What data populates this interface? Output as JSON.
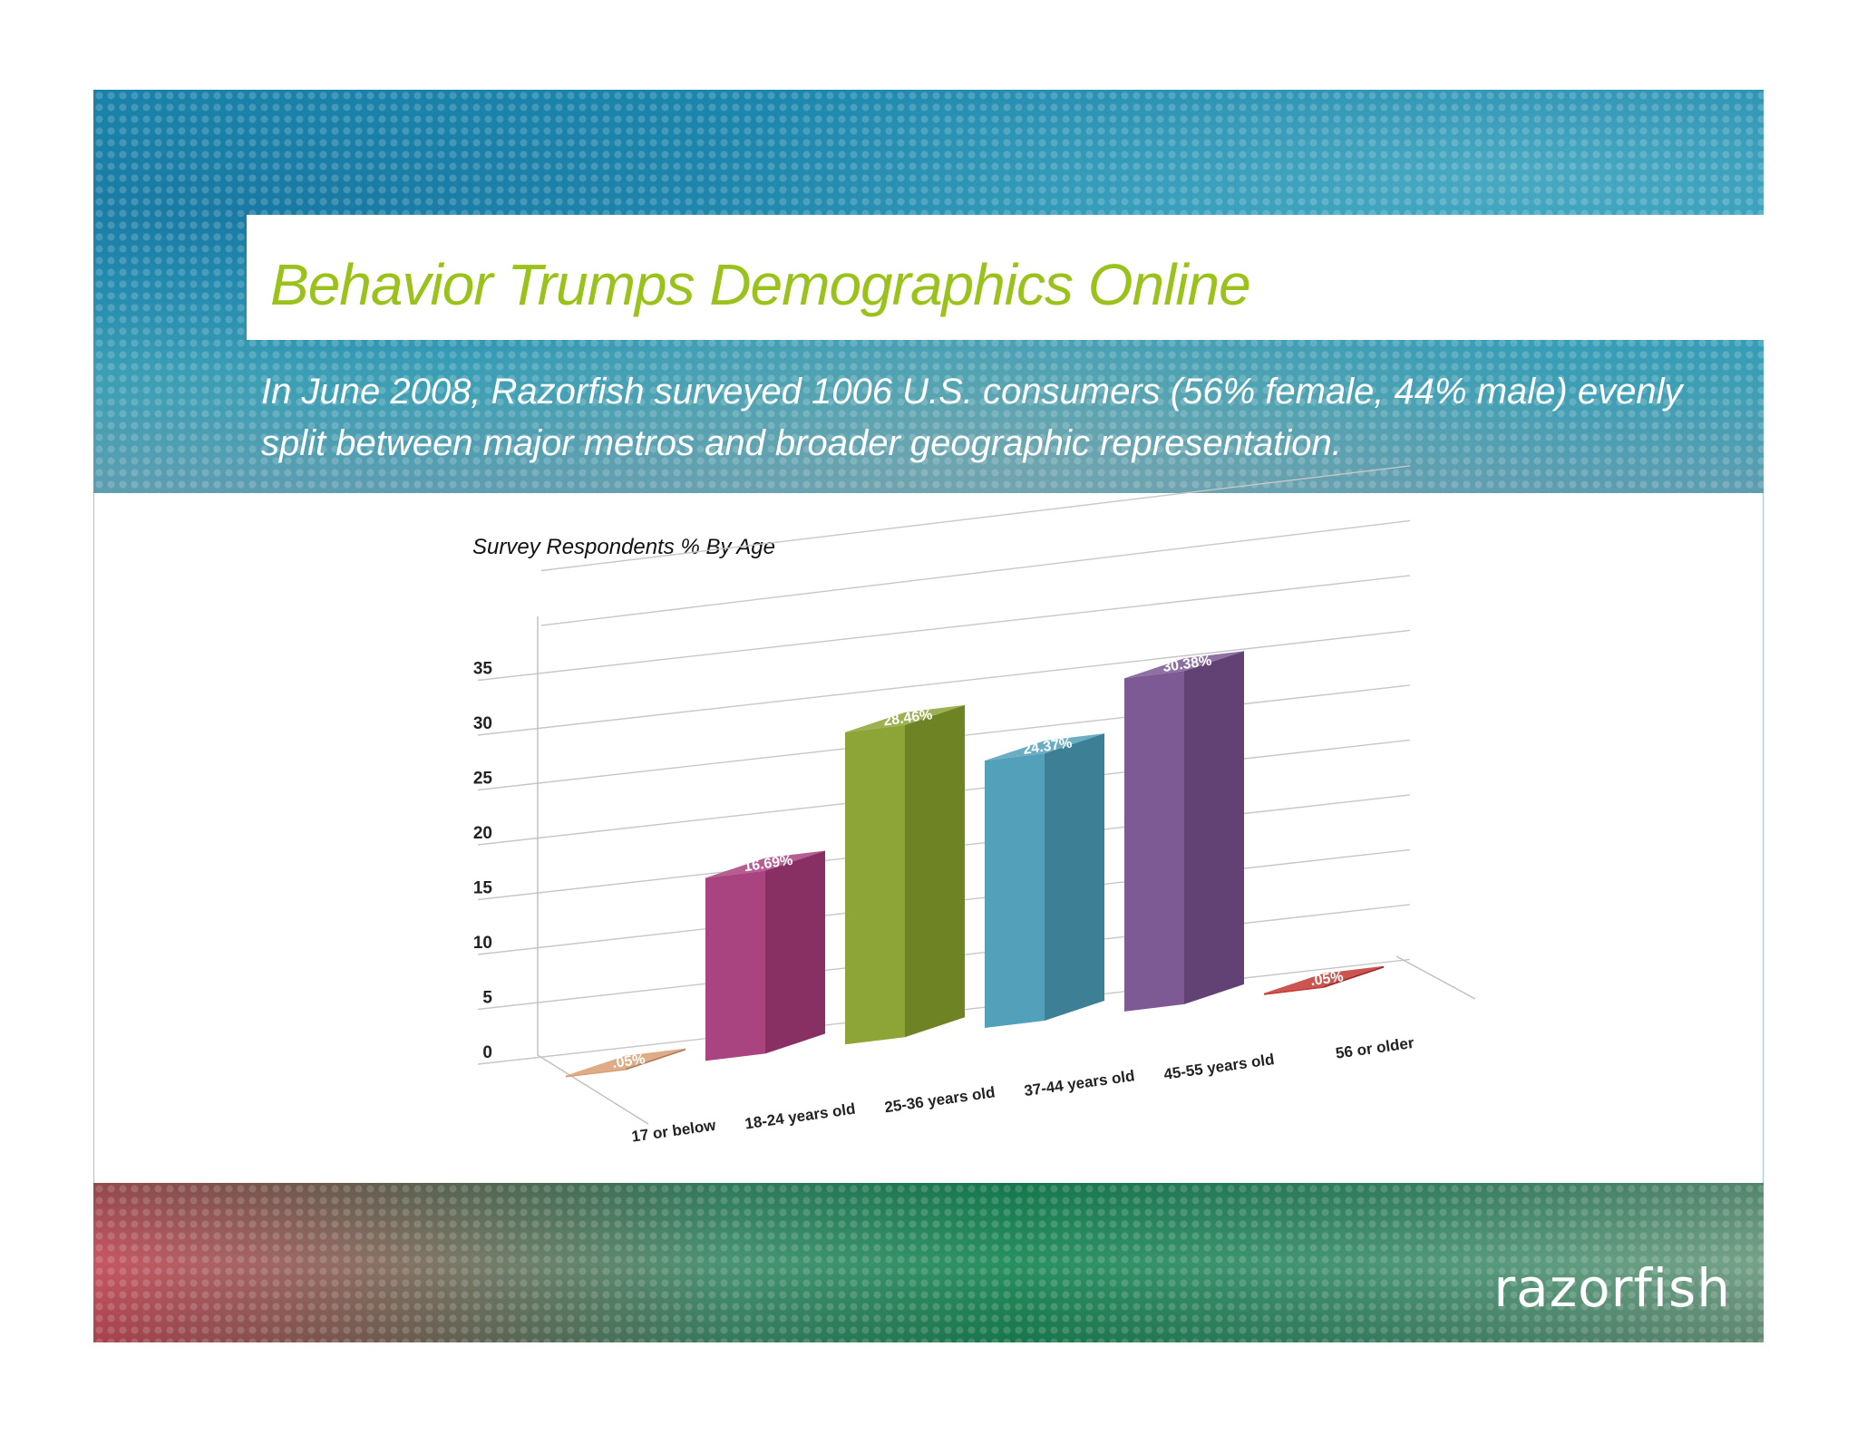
{
  "slide": {
    "title": "Behavior Trumps Demographics Online",
    "subtitle": "In June 2008, Razorfish surveyed 1006 U.S. consumers (56% female, 44% male) evenly split between major metros and broader geographic representation.",
    "logo": "razorfish"
  },
  "chart_data": {
    "type": "bar",
    "title": "Survey Respondents % By Age",
    "xlabel": "",
    "ylabel": "",
    "categories": [
      "17 or below",
      "18-24 years old",
      "25-36 years old",
      "37-44 years old",
      "45-55 years old",
      "56 or older"
    ],
    "values": [
      0.05,
      16.69,
      28.46,
      24.37,
      30.38,
      0.05
    ],
    "data_labels": [
      ".05%",
      "16.69%",
      "28.46%",
      "24.37%",
      "30.38%",
      ".05%"
    ],
    "colors": [
      "#d79b6e",
      "#a63a7a",
      "#86a02b",
      "#4a9bb6",
      "#77518e",
      "#c0302b"
    ],
    "ylim": [
      0,
      35
    ],
    "yticks": [
      0,
      5,
      10,
      15,
      20,
      25,
      30,
      35
    ],
    "style": "3d",
    "grid": true,
    "legend": "none"
  }
}
